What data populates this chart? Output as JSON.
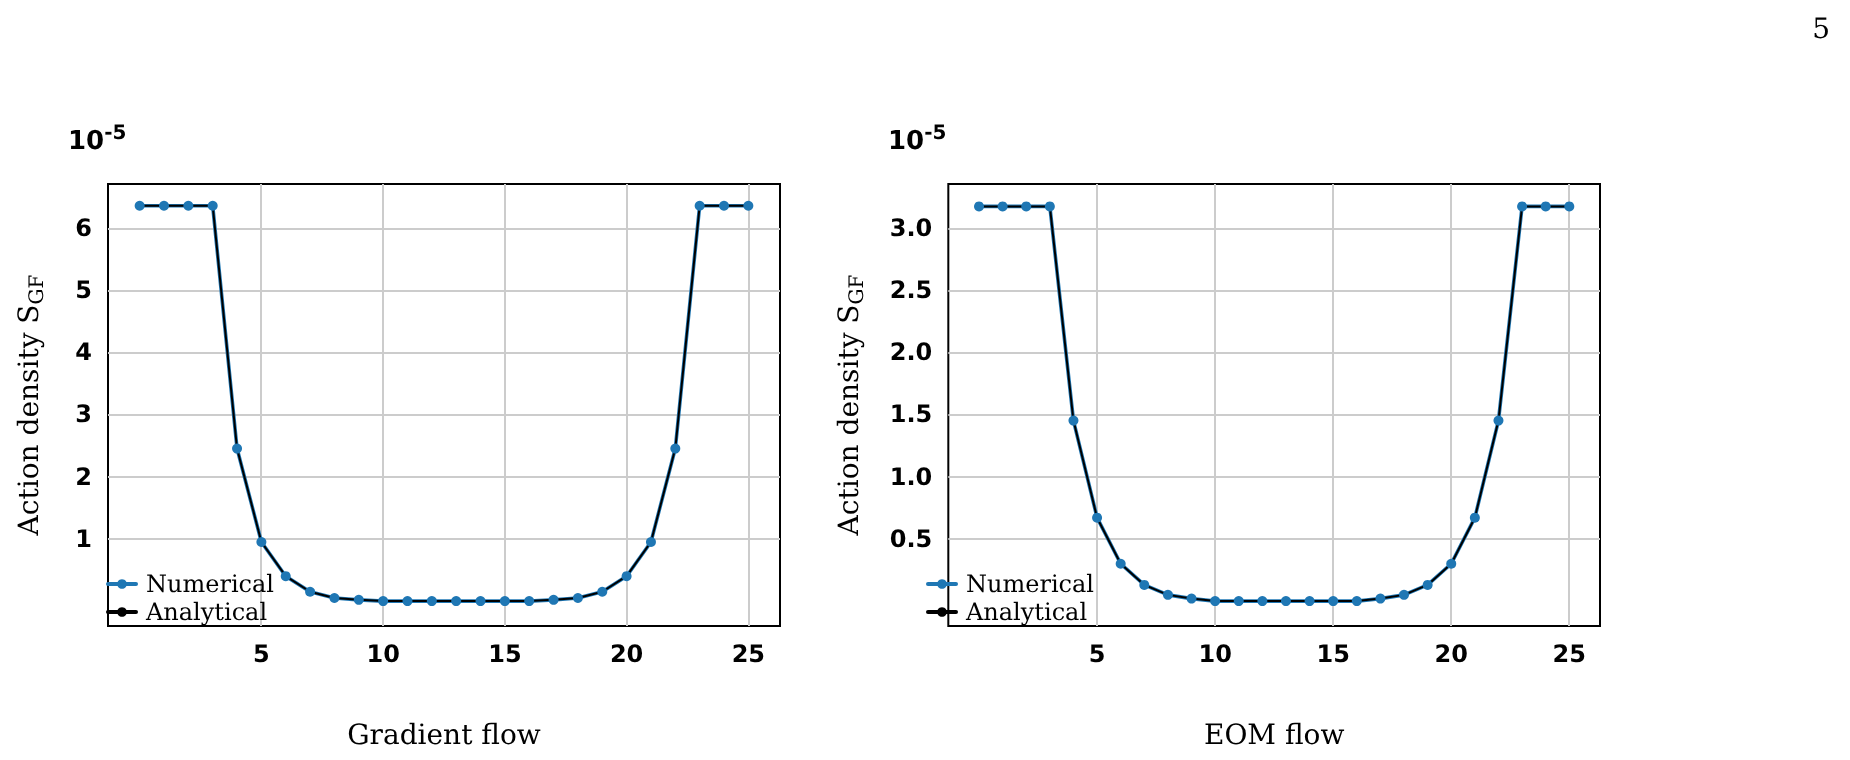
{
  "chart_data": [
    {
      "type": "line",
      "xlabel": "Gradient flow",
      "ylabel": "Action density S$_{GF}$",
      "annotations": [
        "10$^{-5}$"
      ],
      "x": [
        0,
        1,
        2,
        3,
        4,
        5,
        6,
        7,
        8,
        9,
        10,
        11,
        12,
        13,
        14,
        15,
        16,
        17,
        18,
        19,
        20,
        21,
        22,
        23,
        24,
        25
      ],
      "series": [
        {
          "name": "Numerical",
          "color": "#1f77b4",
          "marker": "circle",
          "values": [
            6.35,
            6.35,
            6.35,
            6.35,
            2.45,
            0.95,
            0.4,
            0.15,
            0.05,
            0.02,
            0,
            0,
            0,
            0,
            0,
            0,
            0,
            0.02,
            0.05,
            0.15,
            0.4,
            0.95,
            2.45,
            6.35,
            6.35,
            6.35
          ]
        },
        {
          "name": "Analytical",
          "color": "#000000",
          "marker": "none",
          "values": [
            6.35,
            6.35,
            6.35,
            6.35,
            2.45,
            0.95,
            0.4,
            0.15,
            0.05,
            0.02,
            0,
            0,
            0,
            0,
            0,
            0,
            0,
            0.02,
            0.05,
            0.15,
            0.4,
            0.95,
            2.45,
            6.35,
            6.35,
            6.35
          ]
        }
      ],
      "xlim": [
        -1.3,
        26.3
      ],
      "xticks": [
        5,
        10,
        15,
        20,
        25
      ],
      "ylim": [
        -0.4,
        6.7
      ],
      "yticks": [
        1,
        2,
        3,
        4,
        5,
        6
      ],
      "grid": true,
      "legend": "bottom left"
    },
    {
      "type": "line",
      "xlabel": "EOM flow",
      "ylabel": "Action density S$_{GF}$",
      "annotations": [
        "10$^{-5}$",
        "5"
      ],
      "x": [
        0,
        1,
        2,
        3,
        4,
        5,
        6,
        7,
        8,
        9,
        10,
        11,
        12,
        13,
        14,
        15,
        16,
        17,
        18,
        19,
        20,
        21,
        22,
        23,
        24,
        25
      ],
      "series": [
        {
          "name": "Numerical",
          "color": "#1f77b4",
          "marker": "circle",
          "values": [
            3.17,
            3.17,
            3.17,
            3.17,
            1.45,
            0.67,
            0.3,
            0.13,
            0.05,
            0.02,
            0,
            0,
            0,
            0,
            0,
            0,
            0,
            0.02,
            0.05,
            0.13,
            0.3,
            0.67,
            1.45,
            3.17,
            3.17,
            3.17
          ]
        },
        {
          "name": "Analytical",
          "color": "#000000",
          "marker": "none",
          "values": [
            3.17,
            3.17,
            3.17,
            3.17,
            1.45,
            0.67,
            0.3,
            0.13,
            0.05,
            0.02,
            0,
            0,
            0,
            0,
            0,
            0,
            0,
            0.02,
            0.05,
            0.13,
            0.3,
            0.67,
            1.45,
            3.17,
            3.17,
            3.17
          ]
        }
      ],
      "xlim": [
        -1.3,
        26.3
      ],
      "xticks": [
        5,
        10,
        15,
        20,
        25
      ],
      "ylim": [
        -0.2,
        3.35
      ],
      "yticks": [
        0.5,
        {
          "value": 1,
          "label": "1.0"
        },
        1.5,
        {
          "value": 2,
          "label": "2.0"
        },
        2.5,
        {
          "value": 3,
          "label": "3.0"
        }
      ],
      "grid": true,
      "legend": "bottom left"
    }
  ]
}
